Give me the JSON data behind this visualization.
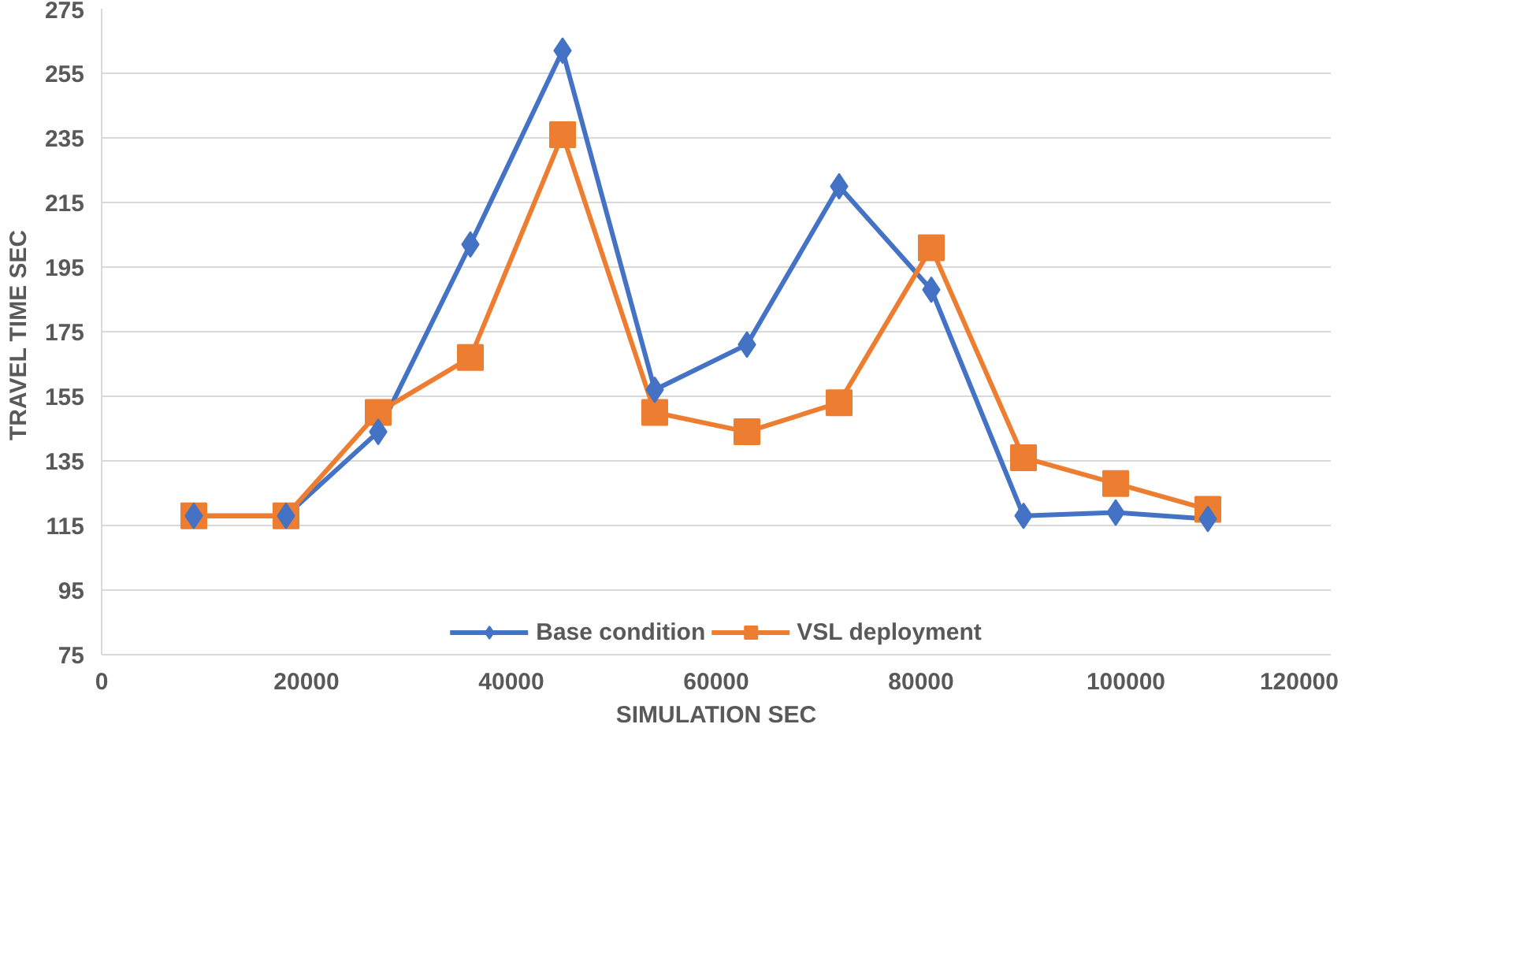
{
  "chart_data": {
    "type": "line",
    "xlabel": "SIMULATION SEC",
    "ylabel": "TRAVEL TIME  SEC",
    "x": [
      9000,
      18000,
      27000,
      36000,
      45000,
      54000,
      63000,
      72000,
      81000,
      90000,
      99000,
      108000
    ],
    "series": [
      {
        "name": "Base condition",
        "color": "#4472c4",
        "marker": "diamond",
        "values": [
          118,
          118,
          144,
          202,
          262,
          157,
          171,
          220,
          188,
          118,
          119,
          117
        ]
      },
      {
        "name": "VSL deployment",
        "color": "#ed7d31",
        "marker": "square",
        "values": [
          118,
          118,
          150,
          167,
          236,
          150,
          144,
          153,
          201,
          136,
          128,
          120
        ]
      }
    ],
    "xlim": [
      0,
      120000
    ],
    "xticks": [
      0,
      20000,
      40000,
      60000,
      80000,
      100000,
      120000
    ],
    "ylim": [
      75,
      275
    ],
    "yticks": [
      75,
      95,
      115,
      135,
      155,
      175,
      195,
      215,
      235,
      255,
      275
    ],
    "grid": "y",
    "legend": "bottom",
    "line_style": "solid"
  }
}
